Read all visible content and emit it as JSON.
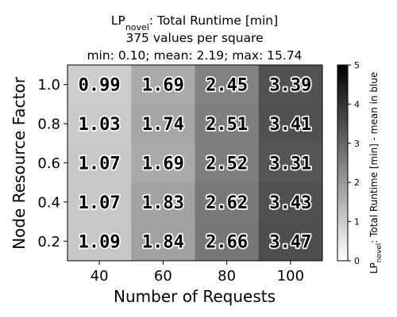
{
  "chart_data": {
    "type": "heatmap",
    "title_lines": [
      {
        "main": "LP",
        "sub": "novel",
        "rest": ": Total Runtime [min]"
      },
      {
        "main": "375 values per square",
        "sub": "",
        "rest": ""
      },
      {
        "main": "min: 0.10; mean: 2.19; max: 15.74",
        "sub": "",
        "rest": ""
      }
    ],
    "xlabel": "Number of Requests",
    "ylabel": "Node Resource Factor",
    "x_categories": [
      "40",
      "60",
      "80",
      "100"
    ],
    "y_categories": [
      "1.0",
      "0.8",
      "0.6",
      "0.4",
      "0.2"
    ],
    "values": [
      [
        0.99,
        1.69,
        2.45,
        3.39
      ],
      [
        1.03,
        1.74,
        2.51,
        3.41
      ],
      [
        1.07,
        1.69,
        2.52,
        3.31
      ],
      [
        1.07,
        1.83,
        2.62,
        3.43
      ],
      [
        1.09,
        1.84,
        2.66,
        3.47
      ]
    ],
    "value_labels": [
      [
        "0.99",
        "1.69",
        "2.45",
        "3.39"
      ],
      [
        "1.03",
        "1.74",
        "2.51",
        "3.41"
      ],
      [
        "1.07",
        "1.69",
        "2.52",
        "3.31"
      ],
      [
        "1.07",
        "1.83",
        "2.62",
        "3.43"
      ],
      [
        "1.09",
        "1.84",
        "2.66",
        "3.47"
      ]
    ],
    "colorbar": {
      "label_main": "LP",
      "label_sub": "novel",
      "label_rest": ": Total Runtime [min] - mean in blue",
      "min": 0,
      "max": 5,
      "ticks": [
        "0",
        "1",
        "2",
        "3",
        "4",
        "5"
      ],
      "colormap": "Greys",
      "color_low": "#ffffff",
      "color_high": "#000000"
    },
    "grid": false
  }
}
